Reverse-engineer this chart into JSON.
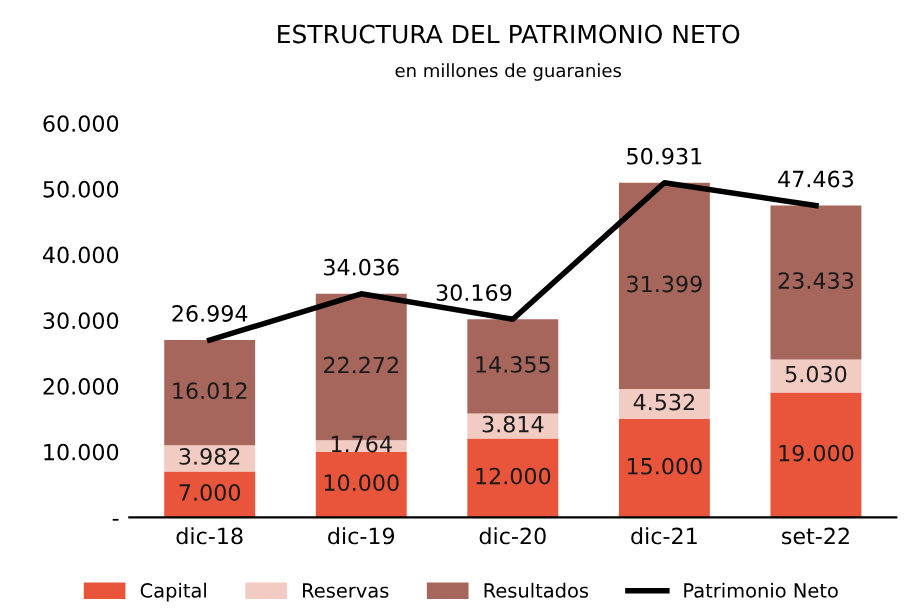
{
  "chart_data": {
    "type": "bar",
    "stacked": true,
    "title": "ESTRUCTURA DEL PATRIMONIO NETO",
    "subtitle": "en millones de guaranies",
    "categories": [
      "dic-18",
      "dic-19",
      "dic-20",
      "dic-21",
      "set-22"
    ],
    "series": [
      {
        "name": "Capital",
        "color": "#e8553a",
        "values": [
          7000,
          10000,
          12000,
          15000,
          19000
        ],
        "value_labels": [
          "7.000",
          "10.000",
          "12.000",
          "15.000",
          "19.000"
        ]
      },
      {
        "name": "Reservas",
        "color": "#f2cbc2",
        "values": [
          3982,
          1764,
          3814,
          4532,
          5030
        ],
        "value_labels": [
          "3.982",
          "1.764",
          "3.814",
          "4.532",
          "5.030"
        ]
      },
      {
        "name": "Resultados",
        "color": "#a6665c",
        "values": [
          16012,
          22272,
          14355,
          31399,
          23433
        ],
        "value_labels": [
          "16.012",
          "22.272",
          "14.355",
          "31.399",
          "23.433"
        ]
      },
      {
        "name": "Patrimonio Neto",
        "type": "line",
        "color": "#000000",
        "values": [
          26994,
          34036,
          30169,
          50931,
          47463
        ],
        "value_labels": [
          "26.994",
          "34.036",
          "30.169",
          "50.931",
          "47.463"
        ]
      }
    ],
    "ylim": [
      0,
      60000
    ],
    "yticks": [
      {
        "value": 0,
        "label": "-"
      },
      {
        "value": 10000,
        "label": "10.000"
      },
      {
        "value": 20000,
        "label": "20.000"
      },
      {
        "value": 30000,
        "label": "30.000"
      },
      {
        "value": 40000,
        "label": "40.000"
      },
      {
        "value": 50000,
        "label": "50.000"
      },
      {
        "value": 60000,
        "label": "60.000"
      }
    ],
    "grid": false,
    "legend": "bottom"
  }
}
